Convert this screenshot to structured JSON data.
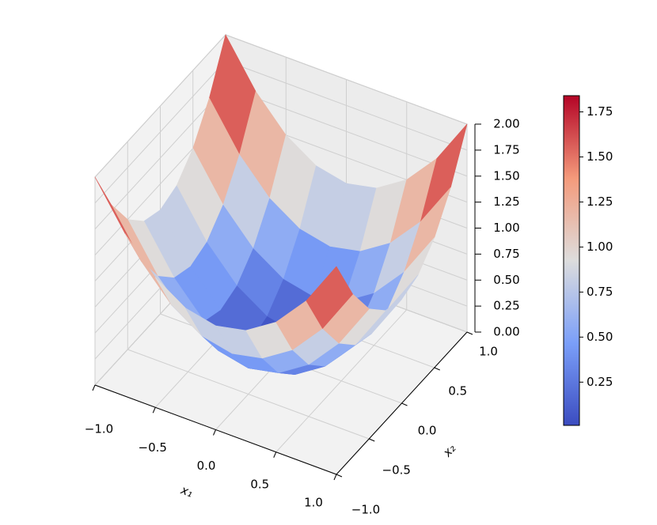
{
  "chart_data": {
    "type": "surface3d",
    "x1": [
      -1,
      -0.75,
      -0.5,
      -0.25,
      0,
      0.25,
      0.5,
      0.75,
      1
    ],
    "x2": [
      -1,
      -0.75,
      -0.5,
      -0.25,
      0,
      0.25,
      0.5,
      0.75,
      1
    ],
    "z": [
      [
        2,
        1.5625,
        1.25,
        1.0625,
        1,
        1.0625,
        1.25,
        1.5625,
        2
      ],
      [
        1.5625,
        1.125,
        0.8125,
        0.625,
        0.5625,
        0.625,
        0.8125,
        1.125,
        1.5625
      ],
      [
        1.25,
        0.8125,
        0.5,
        0.3125,
        0.25,
        0.3125,
        0.5,
        0.8125,
        1.25
      ],
      [
        1.0625,
        0.625,
        0.3125,
        0.125,
        0.0625,
        0.125,
        0.3125,
        0.625,
        1.0625
      ],
      [
        1,
        0.5625,
        0.25,
        0.0625,
        0,
        0.0625,
        0.25,
        0.5625,
        1
      ],
      [
        1.0625,
        0.625,
        0.3125,
        0.125,
        0.0625,
        0.125,
        0.3125,
        0.625,
        1.0625
      ],
      [
        1.25,
        0.8125,
        0.5,
        0.3125,
        0.25,
        0.3125,
        0.5,
        0.8125,
        1.25
      ],
      [
        1.5625,
        1.125,
        0.8125,
        0.625,
        0.5625,
        0.625,
        0.8125,
        1.125,
        1.5625
      ],
      [
        2,
        1.5625,
        1.25,
        1.0625,
        1,
        1.0625,
        1.25,
        1.5625,
        2
      ]
    ],
    "xlabel": "x₁",
    "ylabel": "x₂",
    "xlim": [
      -1,
      1
    ],
    "ylim": [
      -1,
      1
    ],
    "zlim": [
      0,
      2
    ],
    "xticks": [
      {
        "value": -1,
        "label": "−1.0"
      },
      {
        "value": -0.5,
        "label": "−0.5"
      },
      {
        "value": 0,
        "label": "0.0"
      },
      {
        "value": 0.5,
        "label": "0.5"
      },
      {
        "value": 1,
        "label": "1.0"
      }
    ],
    "yticks": [
      {
        "value": -1,
        "label": "−1.0"
      },
      {
        "value": -0.5,
        "label": "−0.5"
      },
      {
        "value": 0,
        "label": "0.0"
      },
      {
        "value": 0.5,
        "label": "0.5"
      },
      {
        "value": 1,
        "label": "1.0"
      }
    ],
    "zticks": [
      {
        "value": 0,
        "label": "0.00"
      },
      {
        "value": 0.25,
        "label": "0.25"
      },
      {
        "value": 0.5,
        "label": "0.50"
      },
      {
        "value": 0.75,
        "label": "0.75"
      },
      {
        "value": 1,
        "label": "1.00"
      },
      {
        "value": 1.25,
        "label": "1.25"
      },
      {
        "value": 1.5,
        "label": "1.50"
      },
      {
        "value": 1.75,
        "label": "1.75"
      },
      {
        "value": 2,
        "label": "2.00"
      }
    ],
    "colormap": [
      "#3b4cc0",
      "#7b9ff9",
      "#dddddd",
      "#f49a7b",
      "#b40426"
    ],
    "colorbar": {
      "lim": [
        0.01,
        1.84
      ],
      "ticks": [
        {
          "value": 0.25,
          "label": "0.25"
        },
        {
          "value": 0.5,
          "label": "0.50"
        },
        {
          "value": 0.75,
          "label": "0.75"
        },
        {
          "value": 1,
          "label": "1.00"
        },
        {
          "value": 1.25,
          "label": "1.25"
        },
        {
          "value": 1.5,
          "label": "1.50"
        },
        {
          "value": 1.75,
          "label": "1.75"
        }
      ]
    },
    "grid": true
  }
}
